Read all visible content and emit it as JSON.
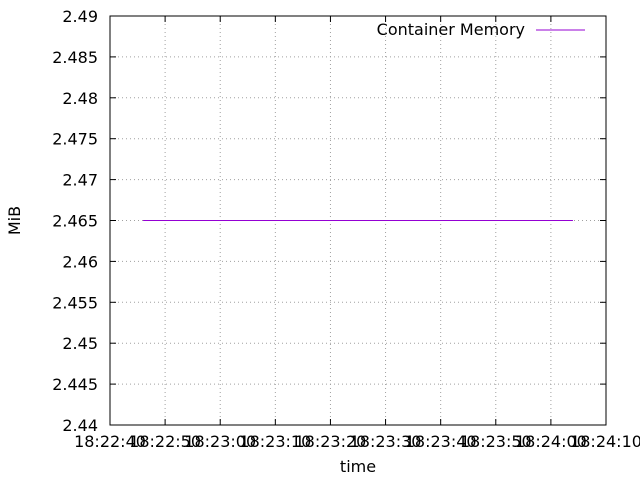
{
  "chart_data": {
    "type": "line",
    "title": "",
    "xlabel": "time",
    "ylabel": "MiB",
    "x_tick_labels": [
      "18:22:40",
      "18:22:50",
      "18:23:00",
      "18:23:10",
      "18:23:20",
      "18:23:30",
      "18:23:40",
      "18:23:50",
      "18:24:00",
      "18:24:10"
    ],
    "y_tick_labels": [
      "2.44",
      "2.445",
      "2.45",
      "2.455",
      "2.46",
      "2.465",
      "2.47",
      "2.475",
      "2.48",
      "2.485",
      "2.49"
    ],
    "xlim": [
      "18:22:40",
      "18:24:10"
    ],
    "ylim": [
      2.44,
      2.49
    ],
    "grid": true,
    "legend_position": "top-right",
    "series": [
      {
        "name": "Container Memory",
        "color": "#9400d3",
        "x": [
          "18:22:46",
          "18:24:04"
        ],
        "y": [
          2.465,
          2.465
        ]
      }
    ]
  }
}
